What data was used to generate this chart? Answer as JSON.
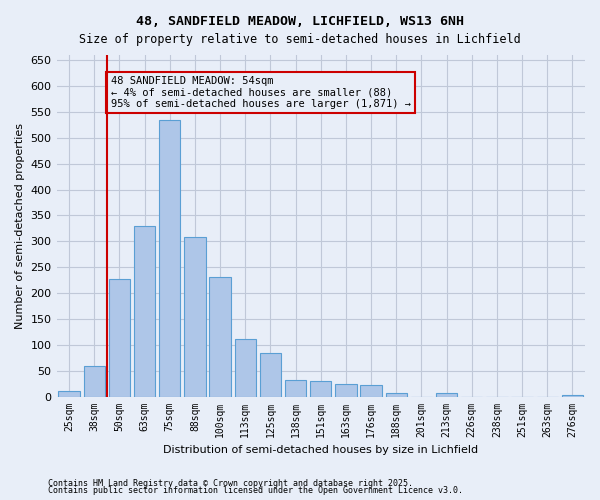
{
  "title1": "48, SANDFIELD MEADOW, LICHFIELD, WS13 6NH",
  "title2": "Size of property relative to semi-detached houses in Lichfield",
  "xlabel": "Distribution of semi-detached houses by size in Lichfield",
  "ylabel": "Number of semi-detached properties",
  "footnote1": "Contains HM Land Registry data © Crown copyright and database right 2025.",
  "footnote2": "Contains public sector information licensed under the Open Government Licence v3.0.",
  "bar_labels": [
    "25sqm",
    "38sqm",
    "50sqm",
    "63sqm",
    "75sqm",
    "88sqm",
    "100sqm",
    "113sqm",
    "125sqm",
    "138sqm",
    "151sqm",
    "163sqm",
    "176sqm",
    "188sqm",
    "201sqm",
    "213sqm",
    "226sqm",
    "238sqm",
    "251sqm",
    "263sqm",
    "276sqm"
  ],
  "bar_values": [
    10,
    60,
    228,
    330,
    535,
    308,
    231,
    112,
    85,
    32,
    30,
    25,
    22,
    7,
    0,
    6,
    0,
    0,
    0,
    0,
    3
  ],
  "bar_color": "#aec6e8",
  "bar_edge_color": "#5a9fd4",
  "grid_color": "#c0c8d8",
  "background_color": "#e8eef8",
  "vline_x": 1,
  "vline_color": "#cc0000",
  "annotation_text": "48 SANDFIELD MEADOW: 54sqm\n← 4% of semi-detached houses are smaller (88)\n95% of semi-detached houses are larger (1,871) →",
  "annotation_box_color": "#cc0000",
  "ylim": [
    0,
    660
  ],
  "yticks": [
    0,
    50,
    100,
    150,
    200,
    250,
    300,
    350,
    400,
    450,
    500,
    550,
    600,
    650
  ]
}
